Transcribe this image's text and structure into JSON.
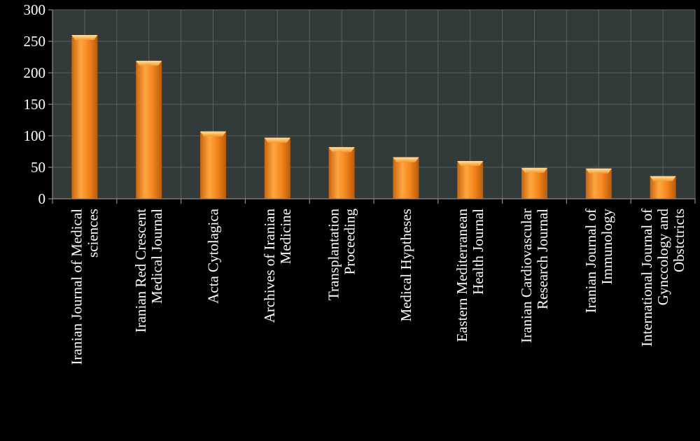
{
  "chart_data": {
    "type": "bar",
    "title": "",
    "xlabel": "",
    "ylabel": "",
    "ylim": [
      0,
      300
    ],
    "yticks": [
      0,
      50,
      100,
      150,
      200,
      250,
      300
    ],
    "grid": true,
    "categories": [
      [
        "Iranian Journal of Medical",
        "sciences"
      ],
      [
        "Iranian Red Crescent",
        "Medical Journal"
      ],
      [
        "Acta Cytolagica"
      ],
      [
        "Archives of Iranian",
        "Medicine"
      ],
      [
        "Transplantation",
        "Proceeding"
      ],
      [
        "Medical Hyptheses"
      ],
      [
        "Eastern Mediterranean",
        "Health Journal"
      ],
      [
        "Iranian Cardiovascular",
        "Research Journal"
      ],
      [
        "Iranian Journal of",
        "Immunology"
      ],
      [
        "International Journal of",
        "Gynccology and",
        "Obstctricts"
      ]
    ],
    "values": [
      260,
      219,
      107,
      97,
      82,
      66,
      60,
      49,
      48,
      36
    ],
    "colors": {
      "background": "#000000",
      "plot": "#333a3a",
      "grid": "#5a6260",
      "bar_light": "#ffb357",
      "bar_mid": "#f07f18",
      "bar_dark": "#b85a0a",
      "text": "#ffffff"
    }
  }
}
